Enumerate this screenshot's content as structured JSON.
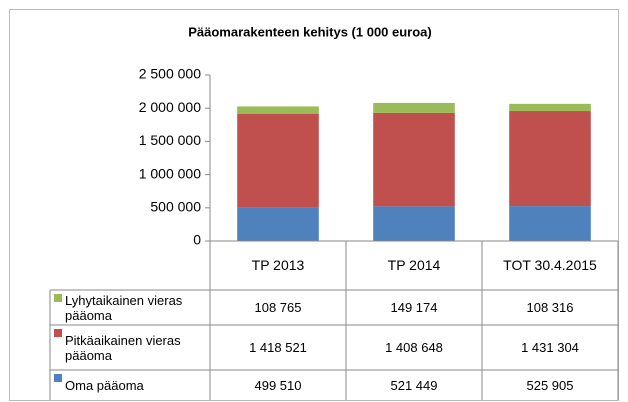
{
  "chart_data": {
    "type": "bar",
    "stacked": true,
    "title": "Pääomarakenteen kehitys (1 000 euroa)",
    "categories": [
      "TP 2013",
      "TP 2014",
      "TOT 30.4.2015"
    ],
    "series": [
      {
        "name": "Oma pääoma",
        "color": "#4f81bd",
        "values": [
          499510,
          521449,
          525905
        ],
        "value_labels": [
          "499 510",
          "521 449",
          "525 905"
        ]
      },
      {
        "name": "Pitkäaikainen vieras pääoma",
        "color": "#c0504d",
        "values": [
          1418521,
          1408648,
          1431304
        ],
        "value_labels": [
          "1 418 521",
          "1 408 648",
          "1 431 304"
        ]
      },
      {
        "name": "Lyhytaikainen vieras pääoma",
        "color": "#9bbb59",
        "values": [
          108765,
          149174,
          108316
        ],
        "value_labels": [
          "108 765",
          "149 174",
          "108 316"
        ]
      }
    ],
    "ylim": [
      0,
      2500000
    ],
    "yticks": [
      0,
      {
        "value": 500000,
        "label": "500 000"
      },
      {
        "value": 1000000,
        "label": "1 000 000"
      },
      {
        "value": 1500000,
        "label": "1 500 000"
      },
      {
        "value": 2000000,
        "label": "2 000 000"
      },
      {
        "value": 2500000,
        "label": "2 500 000"
      }
    ],
    "grid": false
  }
}
